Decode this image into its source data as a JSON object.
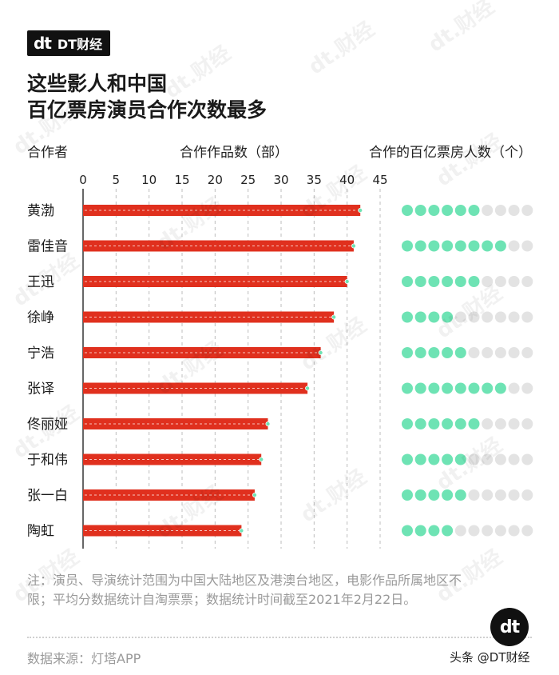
{
  "brand": {
    "mark": "dt",
    "name": "DT财经"
  },
  "title_lines": [
    "这些影人和中国",
    "百亿票房演员合作次数最多"
  ],
  "headers": {
    "col1": "合作者",
    "col2": "合作作品数（部）",
    "col3": "合作的百亿票房人数（个）"
  },
  "chart_data": {
    "type": "bar",
    "orientation": "horizontal",
    "categories": [
      "黄渤",
      "雷佳音",
      "王迅",
      "徐峥",
      "宁浩",
      "张译",
      "佟丽娅",
      "于和伟",
      "张一白",
      "陶虹"
    ],
    "series": [
      {
        "values": [
          42,
          41,
          40,
          38,
          36,
          34,
          28,
          27,
          26,
          24
        ]
      }
    ],
    "xlim": [
      0,
      45
    ],
    "xticks": [
      0,
      5,
      10,
      15,
      20,
      25,
      30,
      35,
      40,
      45
    ],
    "dot_counts": [
      6,
      8,
      6,
      4,
      5,
      8,
      6,
      5,
      5,
      4
    ],
    "dot_total": 10,
    "colors": {
      "bar": "#e0301e",
      "dot_on": "#6ee3b4",
      "dot_off": "#e3e3e3",
      "grid": "#bdbdbd",
      "bar_dash": "#f7c4bd"
    },
    "grid": true
  },
  "note": "注：演员、导演统计范围为中国大陆地区及港澳台地区，电影作品所属地区不限；平均分数据统计自淘票票；数据统计时间截至2021年2月22日。",
  "source": "数据来源：灯塔APP",
  "credit": "头条 @DT财经",
  "badge": "dt",
  "watermark": "dt.财经"
}
